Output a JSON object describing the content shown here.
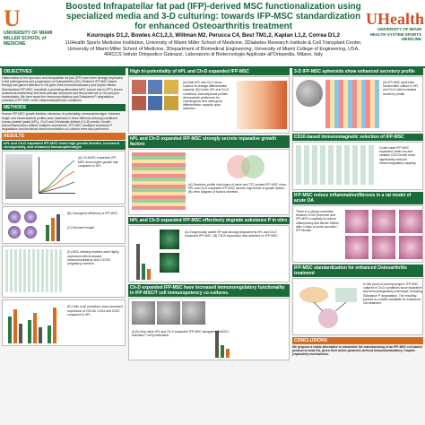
{
  "header": {
    "title": "Boosted Infrapatellar fat pad (IFP)-derived MSC functionalization using specialized media and 3-D culturing: towards IFP-MSC standardization for enhanced Osteoarthritis treatment",
    "authors": "Kouroupis D1,2, Bowles AC1,2,3, Willman M2, Perucca C4, Best TM1,2, Kaplan L1,2, Correa D1,2",
    "affiliations": "1UHealth Sports Medicine Institution, University of Miami Miller School of Medicine, 2Diabetes Research Institute & Cell Transplant Center, University of Miami Miller School of Medicine, 3Department of Biomedical Engineering, University of Miami College of Engineering, USA, 4IRCCS Istituto Ortopedico Galeazzi, Laboratorio di Biotecnologie Applicate all'Ortopedia, Milano, Italy",
    "logo_left_mark": "U",
    "logo_left_text": "UNIVERSITY OF MIAMI MILLER SCHOOL of MEDICINE",
    "logo_right_mark": "UHealth",
    "logo_right_text": "UNIVERSITY OF MIAMI HEALTH SYSTEM SPORTS MEDICINE"
  },
  "col1": {
    "objectives_heading": "OBJECTIVES",
    "objectives_text": "Inflammation of the synovium and infrapatellar fat pad (IFP) have been strongly implicated in the pathogenesis and progression of Osteoarthritis (OA). Resident IFP-MSC based therapy has gained attention in OA given their immunomodulatory and trophic effects. Standardized IFP-MSC constitute a promising alternative MSC source due to IFP's known anatomical relationship with intra-articular structures and the pivotal role in OA and joint homeostasis. We here report the immunomodulatory and Substance P-degradation potential of IFP-MSC under inflammatory/fibrotic conditions.",
    "methods_heading": "METHODS",
    "methods_text": "Human IFP-MSC growth kinetics, stemness, tri-potentiality, immunophenotype, telomere length and transcriptional profiles were assessed in three different culturing conditions: human platelet lysate (hPL), Ch-D and Chemically defined (Ch-D) media. Growth factor/inflammation-related multiplex secretomes, IFP-MSC-mediated substance P degradation and functional immunomodulation co-cultures were also performed.",
    "results_heading": "RESULTS",
    "results_heading_a": "hPL and Ch-D expanded IFP-MSC show high growth kinetics, increased clonogenicity, and enhanced immunophenotype",
    "cap_a": "(A) Ch-D/hPL expanded IFP-MSC show higher growth rate compared to hPL.",
    "cap_b": "(B) Clonogenic efficiency of IFP-MSC.",
    "cap_c": "(C) Telomere length.",
    "cap_d": "(D) MSC-defining markers were highly expressed with increased immunomodulatory and CXCR4 (migratory) markers.",
    "cap_e": "(E) Cells in all conditions show increased expression of CD146, CD44 and CD10 compared to hPL."
  },
  "col2": {
    "h_tri": "High tri-potentiality of hPL and Ch-D expanded IFP-MSC",
    "cap_tri": "(A) Both hPL and Ch-D show superior tri-lineage differentiation capacity. (B) Under hPL and Ch-D conditions, transcriptional profiles demonstrate preference for chondrogenic and osteogenic differentiation capacity upon induction.",
    "h_growth": "hPL and Ch-D expanded IFP-MSC strongly secrete reparative growth factors",
    "cap_growth": "(A) Secretory profile heat maps of naive and TTC-primed IFP-MSC show hPL and Ch-D expanded IFP-MSC secrete high levels of growth factors. (B) Venn diagram of factors secreted.",
    "h_substance": "hPL and Ch-D expanded IFP-MSC effectively degrade substance P in vitro",
    "cap_substance": "(A) Exogenously added SP was strongly degraded by hPL and Ch-D expanded IFP-MSC. (B) CD10 expression was detected on IFP-MSC.",
    "h_immuno": "Ch-D expanded IFP-MSC have increased immunoregulatory functionality in IFP-MSC/T cell immunopotency co-cultures.",
    "cap_immuno": "(A,B) Only naive hPL and Ch-D expanded IFP-MSC abrogated PHA/CD-activated T cell proliferation."
  },
  "col3": {
    "h_spheroid": "3-D IFP-MSC spheroids show enhanced secretory profile",
    "cap_spheroid": "(A) IFP-MSC spheroids formed after culture in hPL and Ch-D with increased secretory profile.",
    "h_cd10": "CD10-based immunomagnetic selection of IFP-MSC",
    "cap_cd10": "Crude naive IFP-MSC expanded under low and variable CD10 levels show significantly reduced immunoregulatory capacity.",
    "h_oa": "IFP-MSC reduce inflammation/fibrosis in a rat model of acute OA",
    "cap_oa": "There is a strong correlation between CD10 presence and IFP-MSC's capacity to reduce inflammatory and fibrotic effects after 4 days of acute synovitis / IFP fibrosis.",
    "h_std": "IFP-MSC standardization for enhanced Osteoarthritis treatment",
    "cap_std": "In this proof-of-concept project, IFP-MSC cultured in Ch-D conditions show reparative and immunoregulatory phenotype, including Substance P degradation. The resulting product is a viable candidate for enhanced OA treatment.",
    "h_conclusions": "CONCLUSIONS",
    "conclusions_text": "We propose a viable alternative to streamline the manufacturing of an IFP-MSC cell-based product to treat OA, given their active paracrine-derived immunomodulatory / trophic (reparative) mechanisms."
  },
  "colors": {
    "brand_green": "#1a6a3a",
    "brand_orange": "#d96b1f"
  }
}
